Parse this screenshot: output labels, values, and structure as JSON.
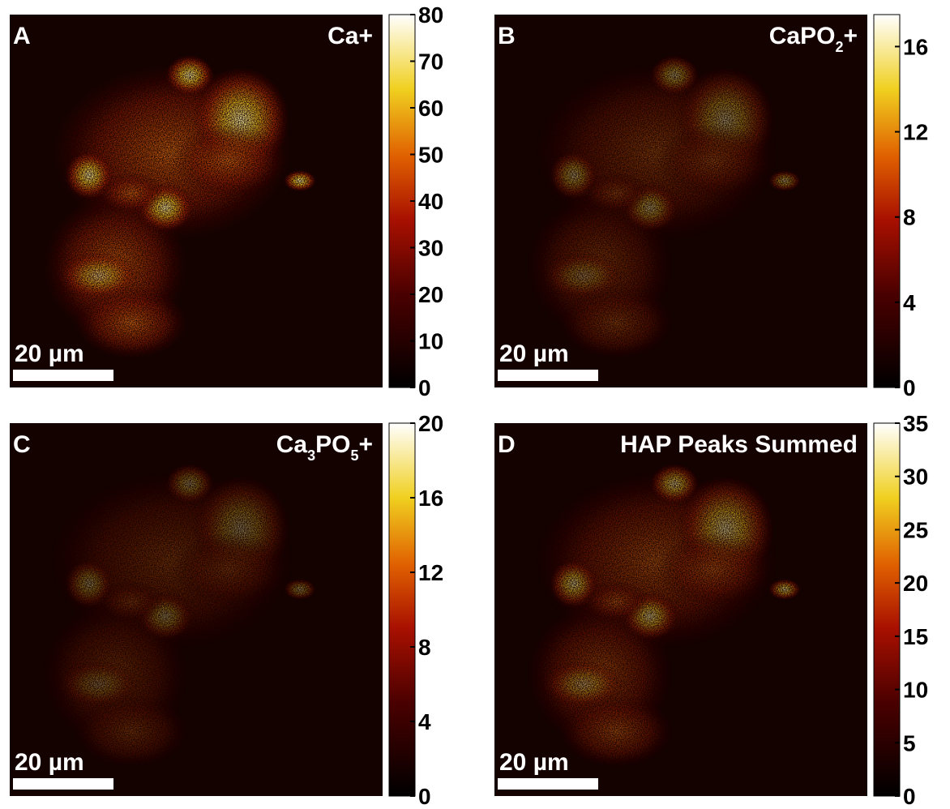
{
  "panels": [
    {
      "letter": "A",
      "label": [
        {
          "text": "Ca+"
        }
      ],
      "scale_bar": "20 µm",
      "colorbar": {
        "range": [
          0,
          80
        ],
        "ticks": [
          0,
          10,
          20,
          30,
          40,
          50,
          60,
          70,
          80
        ]
      }
    },
    {
      "letter": "B",
      "label": [
        {
          "text": "CaPO"
        },
        {
          "text": "2",
          "sub": true
        },
        {
          "text": "+"
        }
      ],
      "scale_bar": "20 µm",
      "colorbar": {
        "range": [
          0,
          17.5
        ],
        "ticks": [
          0,
          4,
          8,
          12,
          16
        ]
      }
    },
    {
      "letter": "C",
      "label": [
        {
          "text": "Ca"
        },
        {
          "text": "3",
          "sub": true
        },
        {
          "text": "PO"
        },
        {
          "text": "5",
          "sub": true
        },
        {
          "text": "+"
        }
      ],
      "scale_bar": "20 µm",
      "colorbar": {
        "range": [
          0,
          20
        ],
        "ticks": [
          0,
          4,
          8,
          12,
          16,
          20
        ]
      }
    },
    {
      "letter": "D",
      "label": [
        {
          "text": "HAP Peaks Summed"
        }
      ],
      "scale_bar": "20 µm",
      "colorbar": {
        "range": [
          0,
          35
        ],
        "ticks": [
          0,
          5,
          10,
          15,
          20,
          25,
          30,
          35
        ]
      }
    }
  ]
}
